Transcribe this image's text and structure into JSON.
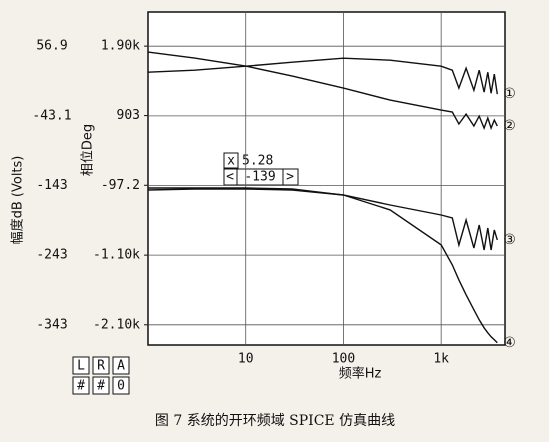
{
  "chart_data": {
    "type": "line",
    "caption": "图 7  系统的开环频域 SPICE 仿真曲线",
    "x_label": "频率Hz",
    "y_label": "幅度dB (Volts)",
    "y2_label": "相位Deg",
    "xscale": "log",
    "x": [
      1,
      3,
      10,
      30,
      100,
      300,
      1000,
      1300,
      1520,
      1800,
      2160,
      2450,
      2750,
      3000,
      3240,
      3500,
      3750
    ],
    "xlim": [
      1,
      4500
    ],
    "xticks": [
      10,
      100,
      {
        "value": 1000,
        "label": "1k"
      }
    ],
    "ylim": [
      -372,
      106
    ],
    "yticks": [
      56.9,
      -43.1,
      -143,
      -243,
      -343
    ],
    "y2lim": [
      -2390,
      2390
    ],
    "y2ticks": [
      {
        "value": 1900,
        "label": "1.90k"
      },
      903,
      -97.2,
      {
        "value": -1100,
        "label": "-1.10k"
      },
      {
        "value": -2100,
        "label": "-2.10k"
      }
    ],
    "grid": true,
    "series": [
      {
        "name": "①",
        "color": "#111111",
        "values": [
          19.6,
          22.5,
          28.2,
          33.9,
          39.7,
          36.8,
          28.2,
          22.5,
          -3.3,
          25.4,
          -6.2,
          22.5,
          -9.0,
          19.6,
          -10.5,
          16.8,
          -11.9
        ]
      },
      {
        "name": "②",
        "color": "#111111",
        "axis": "y2",
        "values": [
          1814,
          1728,
          1613,
          1470,
          1298,
          1126,
          982,
          954,
          782,
          925,
          753,
          896,
          724,
          868,
          724,
          839,
          753
        ]
      },
      {
        "name": "③",
        "color": "#111111",
        "values": [
          -149.5,
          -148.1,
          -148.1,
          -149.5,
          -156.7,
          -171.0,
          -185.4,
          -189.7,
          -228.4,
          -192.6,
          -232.7,
          -199.7,
          -235.6,
          -204.0,
          -235.6,
          -206.9,
          -221.2
        ]
      },
      {
        "name": "④",
        "color": "#111111",
        "axis": "y2",
        "values": [
          -135.9,
          -135.9,
          -135.9,
          -150.2,
          -236.2,
          -451.3,
          -953.1,
          -1239.8,
          -1454.9,
          -1669.9,
          -1885.0,
          -2028.3,
          -2143.0,
          -2214.7,
          -2272.1,
          -2315.1,
          -2358.1
        ]
      }
    ],
    "cursor": {
      "x_key": "x",
      "x_value": "5.28",
      "left": "<",
      "y_value": "-139",
      "right": ">"
    },
    "keys": [
      [
        "L",
        "R",
        "A"
      ],
      [
        "#",
        "#",
        "0"
      ]
    ]
  }
}
